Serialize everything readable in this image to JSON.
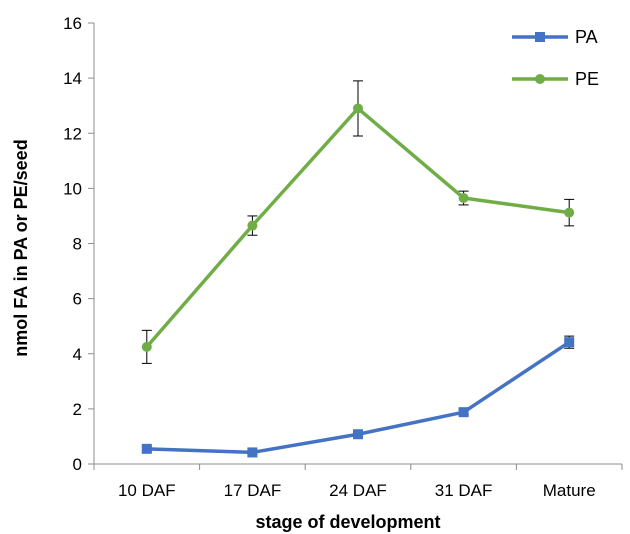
{
  "chart_data": {
    "type": "line",
    "categories": [
      "10 DAF",
      "17 DAF",
      "24 DAF",
      "31 DAF",
      "Mature"
    ],
    "xlabel": "stage of development",
    "ylabel": "nmol FA in PA or PE/seed",
    "ylim": [
      0,
      16
    ],
    "yticks": [
      0,
      2,
      4,
      6,
      8,
      10,
      12,
      14,
      16
    ],
    "grid": false,
    "legend_position": "top-right",
    "series": [
      {
        "name": "PA",
        "color": "#4472C4",
        "marker": "square",
        "values": [
          0.55,
          0.42,
          1.08,
          1.88,
          4.42
        ],
        "errors": [
          0.08,
          0.06,
          0.1,
          0.1,
          0.22
        ]
      },
      {
        "name": "PE",
        "color": "#70AD47",
        "marker": "circle",
        "values": [
          4.25,
          8.65,
          12.9,
          9.65,
          9.12
        ],
        "errors": [
          0.6,
          0.35,
          1.0,
          0.25,
          0.48
        ]
      }
    ]
  }
}
